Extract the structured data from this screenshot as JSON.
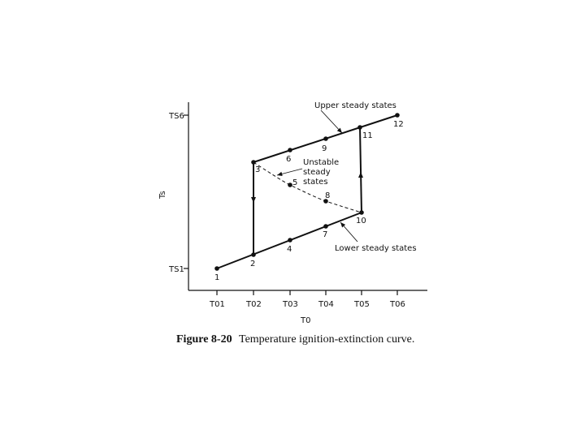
{
  "figure": {
    "y_axis_label": "Ts",
    "x_axis_label": "T0",
    "y_ticks": [
      "TS6",
      "TS1"
    ],
    "x_ticks": [
      "T01",
      "T02",
      "T03",
      "T04",
      "T05",
      "T06"
    ],
    "points": [
      "1",
      "2",
      "3",
      "4",
      "5",
      "6",
      "7",
      "8",
      "9",
      "10",
      "11",
      "12"
    ],
    "annotations": {
      "upper": "Upper steady states",
      "unstable": [
        "Unstable",
        "steady",
        "states"
      ],
      "lower": "Lower steady states"
    },
    "caption": {
      "number": "Figure 8-20",
      "text": "Temperature ignition-extinction curve."
    }
  }
}
